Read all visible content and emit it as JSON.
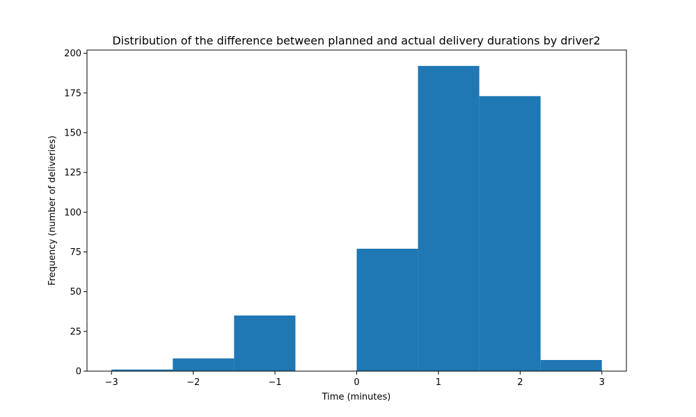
{
  "chart_data": {
    "type": "bar",
    "title": "Distribution of the difference between planned and actual delivery durations by driver2",
    "xlabel": "Time (minutes)",
    "ylabel": "Frequency (number of deliveries)",
    "xlim": [
      -3.3,
      3.3
    ],
    "ylim": [
      0,
      202
    ],
    "x_ticks": [
      {
        "value": -3,
        "label": "−3"
      },
      {
        "value": -2,
        "label": "−2"
      },
      {
        "value": -1,
        "label": "−1"
      },
      {
        "value": 0,
        "label": "0"
      },
      {
        "value": 1,
        "label": "1"
      },
      {
        "value": 2,
        "label": "2"
      },
      {
        "value": 3,
        "label": "3"
      }
    ],
    "y_ticks": [
      {
        "value": 0,
        "label": "0"
      },
      {
        "value": 25,
        "label": "25"
      },
      {
        "value": 50,
        "label": "50"
      },
      {
        "value": 75,
        "label": "75"
      },
      {
        "value": 100,
        "label": "100"
      },
      {
        "value": 125,
        "label": "125"
      },
      {
        "value": 150,
        "label": "150"
      },
      {
        "value": 175,
        "label": "175"
      },
      {
        "value": 200,
        "label": "200"
      }
    ],
    "bins": [
      {
        "x0": -3.0,
        "x1": -2.25,
        "value": 1
      },
      {
        "x0": -2.25,
        "x1": -1.5,
        "value": 8
      },
      {
        "x0": -1.5,
        "x1": -0.75,
        "value": 35
      },
      {
        "x0": -0.75,
        "x1": 0.0,
        "value": 0
      },
      {
        "x0": 0.0,
        "x1": 0.75,
        "value": 77
      },
      {
        "x0": 0.75,
        "x1": 1.5,
        "value": 192
      },
      {
        "x0": 1.5,
        "x1": 2.25,
        "value": 173
      },
      {
        "x0": 2.25,
        "x1": 3.0,
        "value": 7
      }
    ],
    "bar_color": "#1f77b4",
    "grid": false
  }
}
